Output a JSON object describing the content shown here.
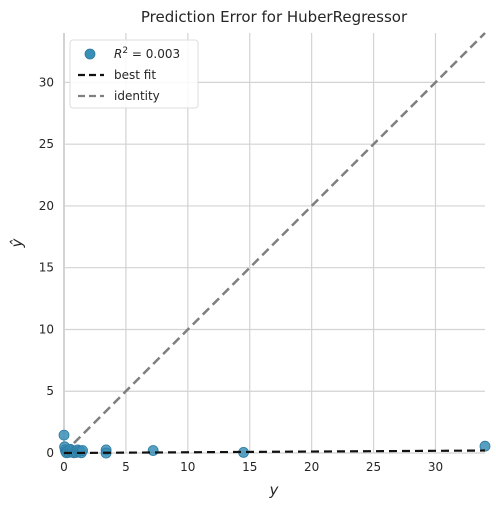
{
  "chart_data": {
    "type": "scatter",
    "title": "Prediction Error for HuberRegressor",
    "xlabel": "y",
    "ylabel": "ŷ",
    "xlim": [
      0,
      34
    ],
    "ylim": [
      0,
      34
    ],
    "xticks": [
      0,
      5,
      10,
      15,
      20,
      25,
      30
    ],
    "yticks": [
      0,
      5,
      10,
      15,
      20,
      25,
      30
    ],
    "grid": true,
    "legend_position": "top-left",
    "legend": {
      "points_label_prefix": "R",
      "points_label_exponent": "2",
      "points_label_suffix": " = 0.003",
      "best_fit_label": "best fit",
      "identity_label": "identity"
    },
    "colors": {
      "points": "#3a8fb7",
      "points_edge": "#2c7aa0",
      "best_fit": "#111111",
      "identity": "#7f7f7f",
      "grid": "#d3d3d3",
      "axes_background": "#ffffff"
    },
    "points": [
      {
        "x": 0.0,
        "y": 1.45
      },
      {
        "x": 0.05,
        "y": 0.5
      },
      {
        "x": 0.1,
        "y": 0.25
      },
      {
        "x": 0.15,
        "y": 0.1
      },
      {
        "x": 0.2,
        "y": 0.02
      },
      {
        "x": 0.3,
        "y": 0.15
      },
      {
        "x": 0.4,
        "y": 0.05
      },
      {
        "x": 0.5,
        "y": 0.3
      },
      {
        "x": 0.6,
        "y": 0.1
      },
      {
        "x": 0.7,
        "y": 0.2
      },
      {
        "x": 0.8,
        "y": 0.02
      },
      {
        "x": 0.9,
        "y": 0.12
      },
      {
        "x": 1.0,
        "y": 0.05
      },
      {
        "x": 1.1,
        "y": 0.25
      },
      {
        "x": 1.2,
        "y": 0.1
      },
      {
        "x": 1.3,
        "y": 0.18
      },
      {
        "x": 1.4,
        "y": 0.02
      },
      {
        "x": 1.5,
        "y": 0.2
      },
      {
        "x": 3.4,
        "y": 0.25
      },
      {
        "x": 3.4,
        "y": 0.0
      },
      {
        "x": 7.2,
        "y": 0.2
      },
      {
        "x": 14.5,
        "y": 0.05
      },
      {
        "x": 34.0,
        "y": 0.55
      }
    ],
    "best_fit": {
      "x": [
        0,
        34
      ],
      "y": [
        0.0,
        0.2
      ]
    },
    "identity": {
      "x": [
        0,
        34
      ],
      "y": [
        0,
        34
      ]
    }
  }
}
